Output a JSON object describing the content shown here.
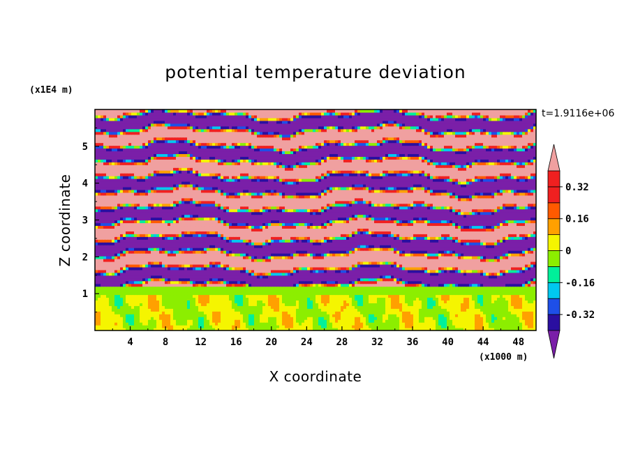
{
  "chart_data": {
    "type": "heatmap",
    "title": "potential temperature deviation",
    "xlabel": "X coordinate",
    "ylabel": "Z coordinate",
    "x_unit": "(x1000 m)",
    "y_unit": "(x1E4 m)",
    "time_label": "t=1.9116e+06",
    "xlim": [
      0,
      50
    ],
    "ylim": [
      0,
      6
    ],
    "x_ticks": [
      4,
      8,
      12,
      16,
      20,
      24,
      28,
      32,
      36,
      40,
      44,
      48
    ],
    "y_ticks": [
      1,
      2,
      3,
      4,
      5
    ],
    "x_tick_labels": [
      "4",
      "8",
      "12",
      "16",
      "20",
      "24",
      "28",
      "32",
      "36",
      "40",
      "44",
      "48"
    ],
    "y_tick_labels": [
      "1",
      "2",
      "3",
      "4",
      "5"
    ],
    "colorbar": {
      "levels": [
        -0.4,
        -0.32,
        -0.24,
        -0.16,
        -0.08,
        0,
        0.08,
        0.16,
        0.24,
        0.32,
        0.4
      ],
      "labels": [
        "0.32",
        "0.16",
        "0",
        "-0.16",
        "-0.32"
      ],
      "label_values": [
        0.32,
        0.16,
        0,
        -0.16,
        -0.32
      ],
      "colors": [
        "#7a1fa8",
        "#2a0fa0",
        "#1e4fe8",
        "#00c8f0",
        "#00f09a",
        "#8cee00",
        "#f5f500",
        "#ffa000",
        "#ff5a00",
        "#f02020",
        "#f0a0a0"
      ],
      "extend": "both"
    }
  }
}
